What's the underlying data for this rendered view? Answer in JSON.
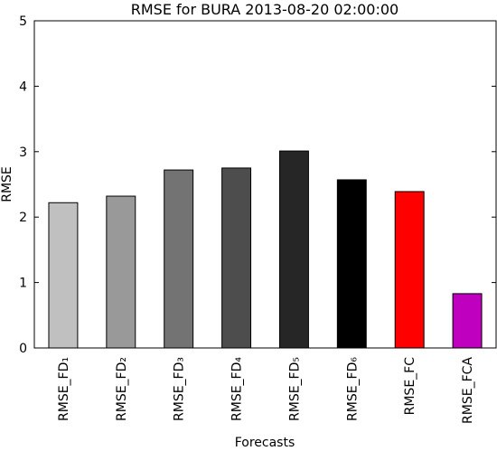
{
  "chart_data": {
    "type": "bar",
    "title": "RMSE for BURA 2013-08-20 02:00:00",
    "x_label": "Forecasts",
    "y_label": "RMSE",
    "categories": [
      "RMSE_FD₁",
      "RMSE_FD₂",
      "RMSE_FD₃",
      "RMSE_FD₄",
      "RMSE_FD₅",
      "RMSE_FD₆",
      "RMSE_FC",
      "RMSE_FCA"
    ],
    "values": [
      2.22,
      2.32,
      2.72,
      2.75,
      3.01,
      2.57,
      2.39,
      0.83
    ],
    "colors": [
      "#c0c0c0",
      "#999999",
      "#737373",
      "#4d4d4d",
      "#262626",
      "#000000",
      "#ff0000",
      "#bf00bf"
    ],
    "ylim": [
      0,
      5
    ],
    "yticks": [
      0,
      1,
      2,
      3,
      4,
      5
    ],
    "grid": false
  }
}
